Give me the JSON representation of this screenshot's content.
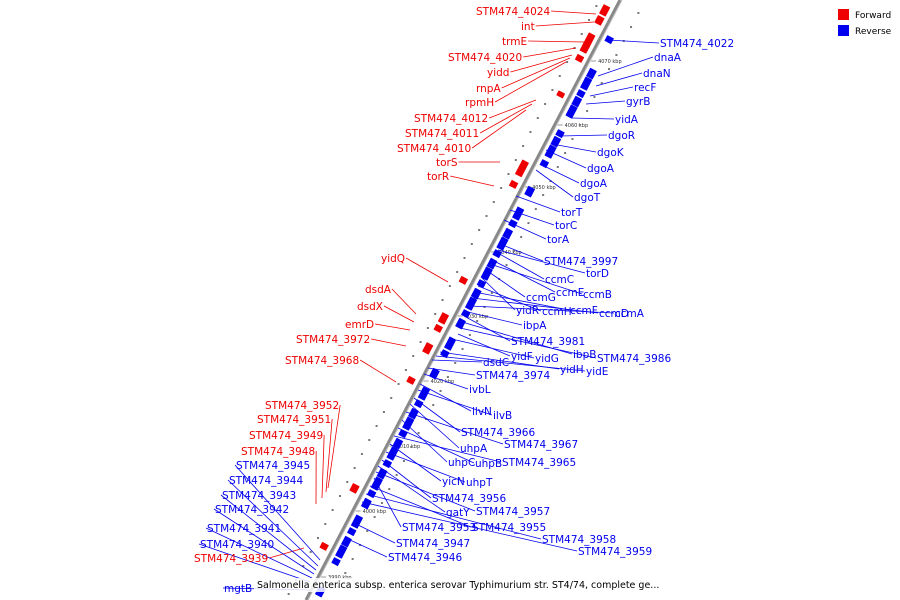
{
  "colors": {
    "forward": "#ee0000",
    "reverse": "#0000ee",
    "backbone": "#888888"
  },
  "legend": {
    "forward": "Forward",
    "reverse": "Reverse"
  },
  "caption": "Salmonella enterica subsp. enterica serovar Typhimurium str. ST4/74, complete ge...",
  "ticks": [
    "4070 kbp",
    "4060 kbp",
    "4050 kbp",
    "4040 kbp",
    "4030 kbp",
    "4020 kbp",
    "4010 kbp",
    "4000 kbp",
    "3990 kbp"
  ],
  "forward_labels": [
    "STM474_4024",
    "int",
    "trmE",
    "STM474_4020",
    "yidd",
    "rnpA",
    "rpmH",
    "STM474_4012",
    "STM474_4011",
    "STM474_4010",
    "torS",
    "torR",
    "yidQ",
    "dsdA",
    "dsdX",
    "emrD",
    "STM474_3972",
    "STM474_3968",
    "STM474_3952",
    "STM474_3951",
    "STM474_3949",
    "STM474_3948",
    "STM474_3939"
  ],
  "reverse_labels": [
    "STM474_4022",
    "dnaA",
    "dnaN",
    "recF",
    "gyrB",
    "yidA",
    "dgoR",
    "dgoK",
    "dgoA",
    "dgoA",
    "dgoT",
    "torT",
    "torC",
    "torA",
    "STM474_3997",
    "torD",
    "ccmC",
    "ccmE",
    "ccmB",
    "ccmG",
    "yidR",
    "ccmH",
    "ccmF",
    "ccmD",
    "ccmA",
    "ibpA",
    "STM474_3981",
    "ibpB",
    "STM474_3986",
    "yidF",
    "yidG",
    "yidH",
    "yidE",
    "dsdC",
    "STM474_3974",
    "ivbL",
    "ilvN",
    "ilvB",
    "STM474_3966",
    "uhpA",
    "STM474_3967",
    "uhpC",
    "uhpB",
    "STM474_3965",
    "yicN",
    "uhpT",
    "STM474_3956",
    "gatY",
    "STM474_3957",
    "STM474_3953",
    "STM474_3955",
    "STM474_3958",
    "STM474_3959",
    "STM474_3947",
    "STM474_3946",
    "mgtB",
    "STM474_3945",
    "STM474_3944",
    "STM474_3943",
    "STM474_3942",
    "STM474_3941",
    "STM474_3940"
  ]
}
